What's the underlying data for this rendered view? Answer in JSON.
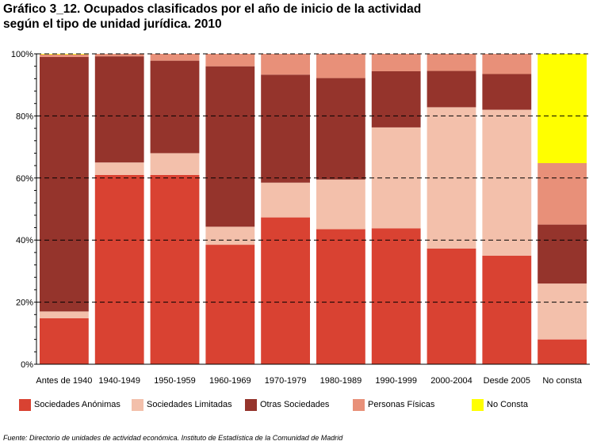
{
  "title_lines": [
    "Gráfico 3_12. Ocupados clasificados por el año de inicio de la actividad",
    "según el tipo de unidad jurídica. 2010"
  ],
  "source": "Fuente: Directorio de unidades de actividad económica. Instituto de Estadística de la Comunidad de Madrid",
  "chart_data": {
    "type": "bar",
    "stacked": true,
    "title": "Gráfico 3_12. Ocupados clasificados por el año de inicio de la actividad según el tipo de unidad jurídica. 2010",
    "xlabel": "",
    "ylabel": "",
    "ylim": [
      0,
      100
    ],
    "yticks": [
      "0%",
      "20%",
      "40%",
      "60%",
      "80%",
      "100%"
    ],
    "grid": true,
    "legend_position": "bottom",
    "categories": [
      "Antes de 1940",
      "1940-1949",
      "1950-1959",
      "1960-1969",
      "1970-1979",
      "1980-1989",
      "1990-1999",
      "2000-2004",
      "Desde 2005",
      "No consta"
    ],
    "series": [
      {
        "name": "Sociedades Anónimas",
        "color": "#d94232",
        "values": [
          14.8,
          61.0,
          61.0,
          38.5,
          47.3,
          43.5,
          43.8,
          37.3,
          35.0,
          8.0
        ]
      },
      {
        "name": "Sociedades Limitadas",
        "color": "#f3c0ab",
        "values": [
          2.2,
          4.0,
          7.0,
          5.8,
          11.2,
          16.0,
          32.5,
          45.5,
          47.0,
          18.0
        ]
      },
      {
        "name": "Otras Sociedades",
        "color": "#95342c",
        "values": [
          82.0,
          34.2,
          29.8,
          51.7,
          34.8,
          32.7,
          18.1,
          11.7,
          11.5,
          19.0
        ]
      },
      {
        "name": "Personas Físicas",
        "color": "#e89079",
        "values": [
          0.8,
          0.8,
          2.2,
          4.0,
          6.7,
          7.8,
          5.6,
          5.5,
          6.5,
          19.8
        ]
      },
      {
        "name": "No Consta",
        "color": "#ffff00",
        "values": [
          0.2,
          0.0,
          0.0,
          0.0,
          0.0,
          0.0,
          0.0,
          0.0,
          0.0,
          35.2
        ]
      }
    ]
  }
}
